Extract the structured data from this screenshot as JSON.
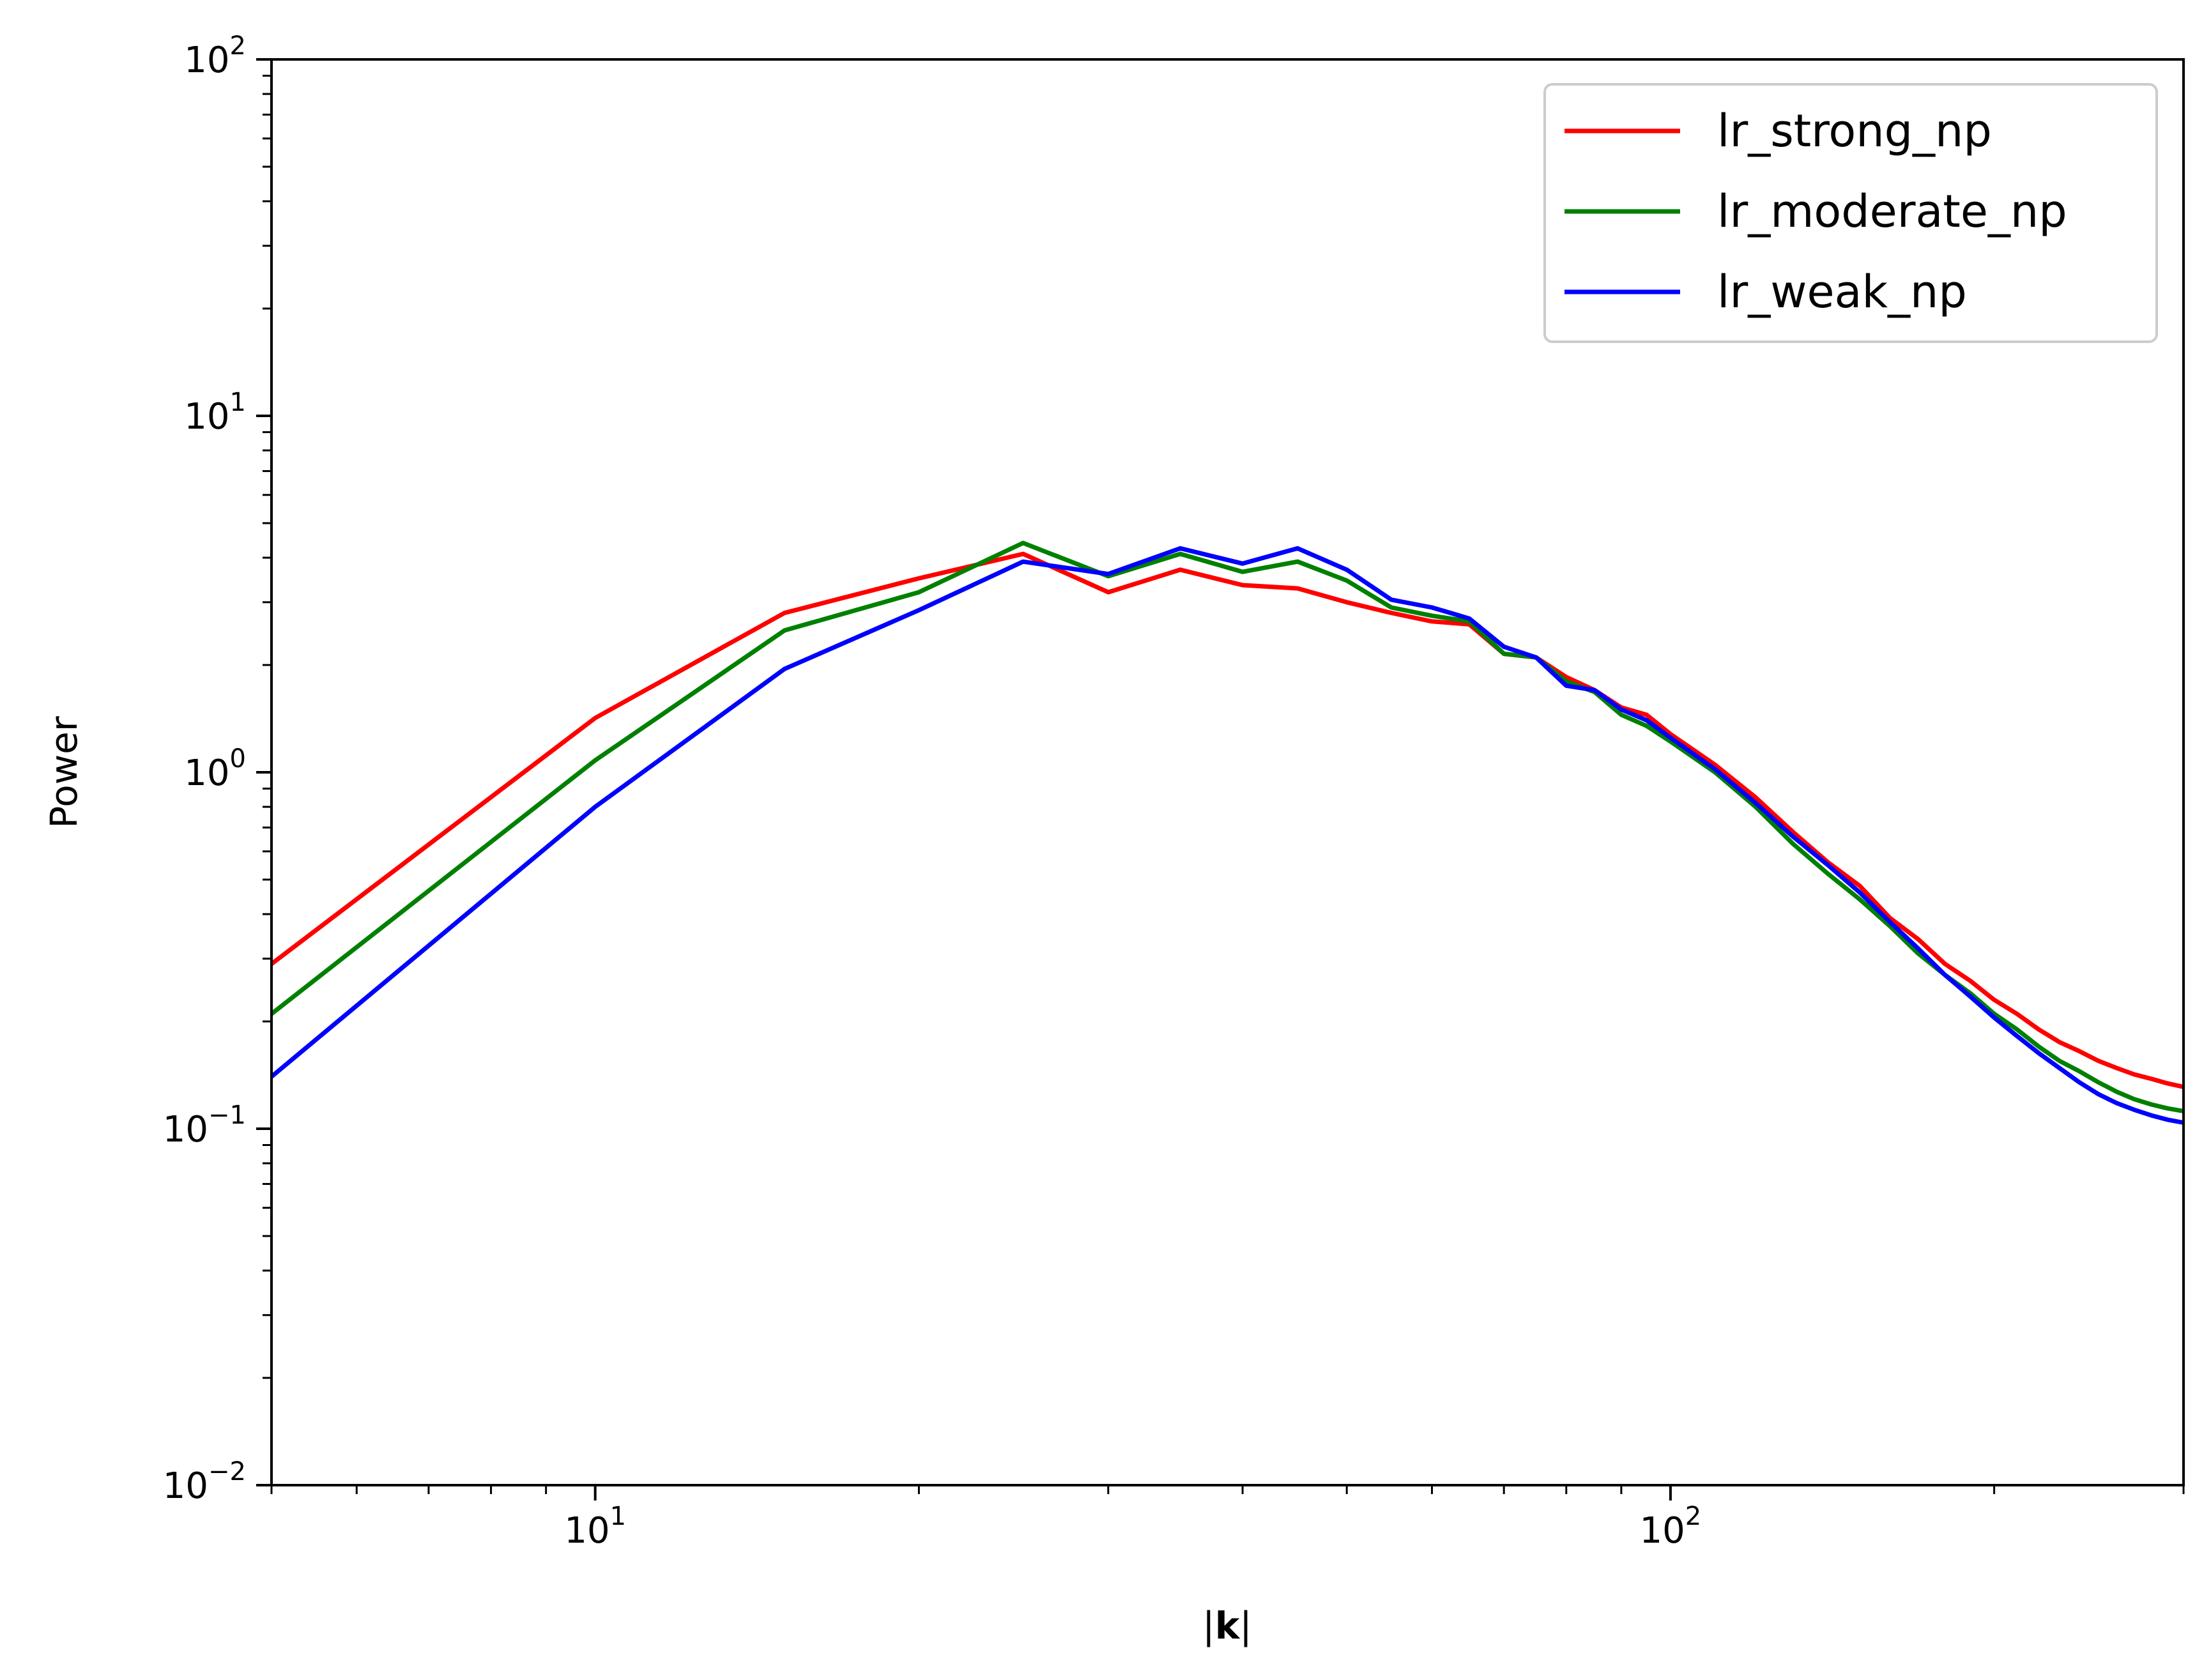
{
  "chart_data": {
    "type": "line",
    "xscale": "log",
    "yscale": "log",
    "xlim": [
      5,
      300
    ],
    "ylim": [
      0.01,
      100
    ],
    "xlabel": "|k|",
    "ylabel": "Power",
    "x_major_ticks": [
      {
        "value": 10,
        "base": "10",
        "exp": "1"
      },
      {
        "value": 100,
        "base": "10",
        "exp": "2"
      }
    ],
    "y_major_ticks": [
      {
        "value": 0.01,
        "base": "10",
        "exp": "−2"
      },
      {
        "value": 0.1,
        "base": "10",
        "exp": "−1"
      },
      {
        "value": 1,
        "base": "10",
        "exp": "0"
      },
      {
        "value": 10,
        "base": "10",
        "exp": "1"
      },
      {
        "value": 100,
        "base": "10",
        "exp": "2"
      }
    ],
    "legend_position": "top-right",
    "series": [
      {
        "name": "lr_strong_np",
        "color": "#ff0000",
        "x": [
          5,
          10,
          15,
          20,
          25,
          30,
          35,
          40,
          45,
          50,
          55,
          60,
          65,
          70,
          75,
          80,
          85,
          90,
          95,
          100,
          110,
          120,
          130,
          140,
          150,
          160,
          170,
          180,
          190,
          200,
          210,
          220,
          230,
          240,
          250,
          260,
          270,
          280,
          290,
          300
        ],
        "y": [
          0.29,
          1.42,
          2.8,
          3.5,
          4.1,
          3.2,
          3.7,
          3.35,
          3.28,
          3.0,
          2.8,
          2.65,
          2.6,
          2.15,
          2.1,
          1.85,
          1.7,
          1.52,
          1.45,
          1.28,
          1.05,
          0.85,
          0.68,
          0.56,
          0.48,
          0.39,
          0.34,
          0.29,
          0.26,
          0.23,
          0.21,
          0.19,
          0.175,
          0.165,
          0.155,
          0.148,
          0.142,
          0.138,
          0.134,
          0.131
        ]
      },
      {
        "name": "lr_moderate_np",
        "color": "#008000",
        "x": [
          5,
          10,
          15,
          20,
          25,
          30,
          35,
          40,
          45,
          50,
          55,
          60,
          65,
          70,
          75,
          80,
          85,
          90,
          95,
          100,
          110,
          120,
          130,
          140,
          150,
          160,
          170,
          180,
          190,
          200,
          210,
          220,
          230,
          240,
          250,
          260,
          270,
          280,
          290,
          300
        ],
        "y": [
          0.21,
          1.08,
          2.5,
          3.2,
          4.4,
          3.55,
          4.1,
          3.65,
          3.9,
          3.45,
          2.9,
          2.75,
          2.65,
          2.15,
          2.1,
          1.8,
          1.68,
          1.45,
          1.35,
          1.22,
          1.0,
          0.8,
          0.63,
          0.52,
          0.44,
          0.37,
          0.31,
          0.27,
          0.24,
          0.21,
          0.19,
          0.17,
          0.155,
          0.145,
          0.135,
          0.127,
          0.121,
          0.117,
          0.114,
          0.112
        ]
      },
      {
        "name": "lr_weak_np",
        "color": "#0000ff",
        "x": [
          5,
          10,
          15,
          20,
          25,
          30,
          35,
          40,
          45,
          50,
          55,
          60,
          65,
          70,
          75,
          80,
          85,
          90,
          95,
          100,
          110,
          120,
          130,
          140,
          150,
          160,
          170,
          180,
          190,
          200,
          210,
          220,
          230,
          240,
          250,
          260,
          270,
          280,
          290,
          300
        ],
        "y": [
          0.14,
          0.8,
          1.95,
          2.85,
          3.9,
          3.6,
          4.25,
          3.85,
          4.25,
          3.7,
          3.05,
          2.9,
          2.7,
          2.25,
          2.1,
          1.75,
          1.7,
          1.5,
          1.4,
          1.25,
          1.02,
          0.82,
          0.66,
          0.55,
          0.46,
          0.38,
          0.32,
          0.27,
          0.235,
          0.205,
          0.182,
          0.163,
          0.148,
          0.135,
          0.125,
          0.118,
          0.113,
          0.109,
          0.106,
          0.104
        ]
      }
    ]
  }
}
